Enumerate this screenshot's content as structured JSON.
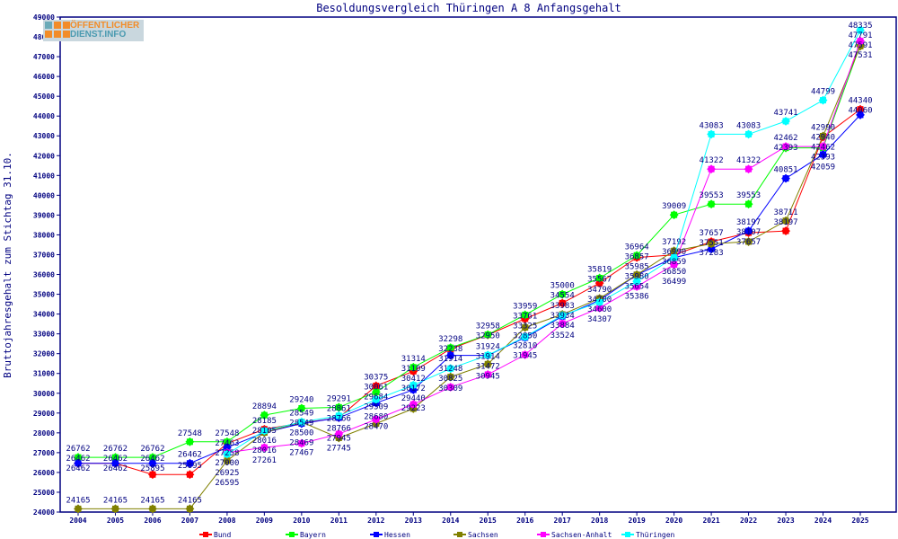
{
  "logo": {
    "line1": "ÖFFENTLICHER",
    "line2": "DIENST.INFO"
  },
  "chart_data": {
    "type": "line",
    "title": "Besoldungsvergleich Thüringen A 8 Anfangsgehalt",
    "xlabel": "",
    "ylabel": "Bruttojahresgehalt zum Stichtag 31.10.",
    "ylim": [
      24000,
      49000
    ],
    "ytick_step": 1000,
    "grid": false,
    "legend": "bottom",
    "x": [
      "2004",
      "2005",
      "2006",
      "2007",
      "2008",
      "2009",
      "2010",
      "2011",
      "2012",
      "2013",
      "2014",
      "2015",
      "2016",
      "2017",
      "2018",
      "2019",
      "2020",
      "2021",
      "2022",
      "2023",
      "2024",
      "2025"
    ],
    "series": [
      {
        "name": "Bund",
        "color": "#ff0000",
        "values": [
          26462,
          26462,
          25895,
          25895,
          27463,
          28185,
          28500,
          28766,
          30375,
          31109,
          32238,
          32950,
          33761,
          34554,
          35567,
          36857,
          36990,
          37657,
          38107,
          38197,
          42940,
          44340
        ]
      },
      {
        "name": "Bayern",
        "color": "#00ff00",
        "values": [
          26762,
          26762,
          26762,
          27548,
          27548,
          28894,
          29240,
          29291,
          30061,
          31314,
          32298,
          32958,
          33959,
          35000,
          35819,
          36964,
          39009,
          39553,
          39553,
          42393,
          42393,
          47591
        ]
      },
      {
        "name": "Hessen",
        "color": "#0000ff",
        "values": [
          26462,
          26462,
          26462,
          26462,
          27258,
          28016,
          28469,
          28766,
          29509,
          30172,
          31914,
          31914,
          32810,
          33884,
          34700,
          35980,
          36850,
          37283,
          38197,
          40851,
          42059,
          44060
        ]
      },
      {
        "name": "Sachsen",
        "color": "#808000",
        "values": [
          24165,
          24165,
          24165,
          24165,
          26595,
          28016,
          28549,
          27745,
          28470,
          29223,
          30825,
          31472,
          33325,
          33983,
          34790,
          35985,
          37192,
          37551,
          37657,
          38711,
          42990,
          47531
        ]
      },
      {
        "name": "Sachsen-Anhalt",
        "color": "#ff00ff",
        "values": [
          null,
          null,
          null,
          null,
          27000,
          27261,
          27467,
          27945,
          28680,
          29440,
          30309,
          30945,
          31945,
          33524,
          34307,
          35386,
          36499,
          41322,
          41322,
          42462,
          42462,
          47791
        ]
      },
      {
        "name": "Thüringen",
        "color": "#00ffff",
        "values": [
          null,
          null,
          null,
          null,
          26925,
          28105,
          28549,
          28861,
          29684,
          30412,
          31248,
          31924,
          32850,
          33934,
          34600,
          35654,
          36859,
          43083,
          43083,
          43741,
          44799,
          48335
        ]
      }
    ]
  }
}
